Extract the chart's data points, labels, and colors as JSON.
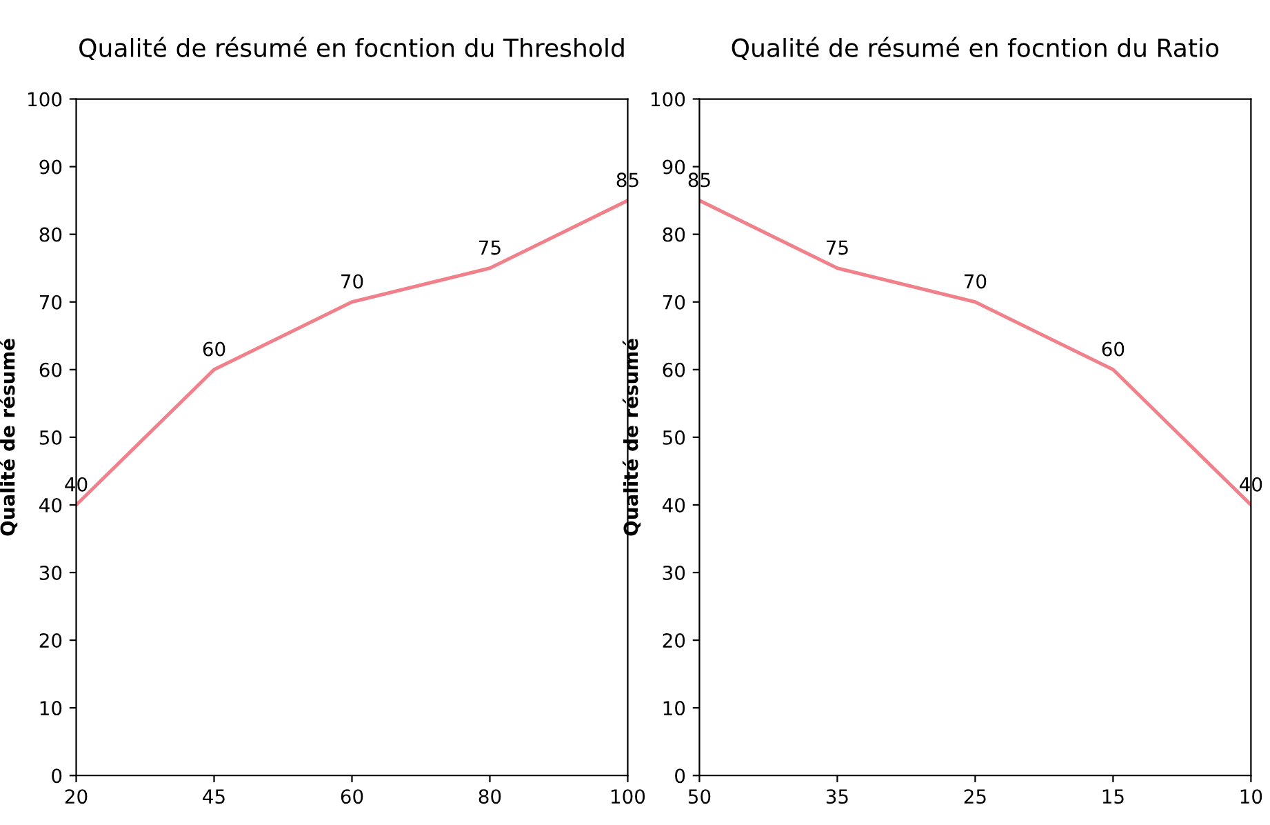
{
  "chart_data": [
    {
      "type": "line",
      "title": "Qualité de résumé en focntion du Threshold",
      "ylabel": "Qualité de résumé",
      "categories": [
        "20",
        "45",
        "60",
        "80",
        "100"
      ],
      "series": [
        {
          "color": "#f0808a",
          "values": [
            40,
            60,
            70,
            75,
            85
          ]
        }
      ],
      "ylim": [
        0,
        100
      ],
      "yticks": [
        0,
        10,
        20,
        30,
        40,
        50,
        60,
        70,
        80,
        90,
        100
      ],
      "grid": false,
      "legend": false,
      "data_labels": true
    },
    {
      "type": "line",
      "title": "Qualité de résumé en focntion du Ratio",
      "ylabel": "Qualité de résumé",
      "categories": [
        "50",
        "35",
        "25",
        "15",
        "10"
      ],
      "series": [
        {
          "color": "#f0808a",
          "values": [
            85,
            75,
            70,
            60,
            40
          ]
        }
      ],
      "ylim": [
        0,
        100
      ],
      "yticks": [
        0,
        10,
        20,
        30,
        40,
        50,
        60,
        70,
        80,
        90,
        100
      ],
      "grid": false,
      "legend": false,
      "data_labels": true
    }
  ]
}
